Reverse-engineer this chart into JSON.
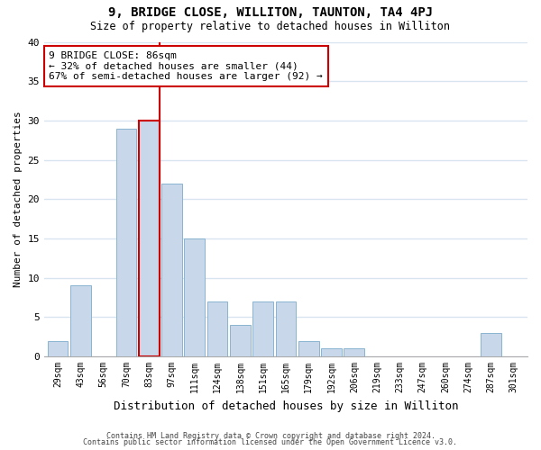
{
  "title": "9, BRIDGE CLOSE, WILLITON, TAUNTON, TA4 4PJ",
  "subtitle": "Size of property relative to detached houses in Williton",
  "xlabel": "Distribution of detached houses by size in Williton",
  "ylabel": "Number of detached properties",
  "bin_labels": [
    "29sqm",
    "43sqm",
    "56sqm",
    "70sqm",
    "83sqm",
    "97sqm",
    "111sqm",
    "124sqm",
    "138sqm",
    "151sqm",
    "165sqm",
    "179sqm",
    "192sqm",
    "206sqm",
    "219sqm",
    "233sqm",
    "247sqm",
    "260sqm",
    "274sqm",
    "287sqm",
    "301sqm"
  ],
  "bar_values": [
    2,
    9,
    0,
    29,
    30,
    22,
    15,
    7,
    4,
    7,
    7,
    2,
    1,
    1,
    0,
    0,
    0,
    0,
    0,
    3,
    0
  ],
  "bar_color": "#c8d8ea",
  "bar_edge_color": "#8ab4d0",
  "highlight_bar_index": 4,
  "highlight_edge_color": "#cc0000",
  "vline_color": "#cc0000",
  "ylim": [
    0,
    40
  ],
  "yticks": [
    0,
    5,
    10,
    15,
    20,
    25,
    30,
    35,
    40
  ],
  "annotation_text": "9 BRIDGE CLOSE: 86sqm\n← 32% of detached houses are smaller (44)\n67% of semi-detached houses are larger (92) →",
  "footnote1": "Contains HM Land Registry data © Crown copyright and database right 2024.",
  "footnote2": "Contains public sector information licensed under the Open Government Licence v3.0.",
  "background_color": "#ffffff",
  "grid_color": "#d8e4f0"
}
